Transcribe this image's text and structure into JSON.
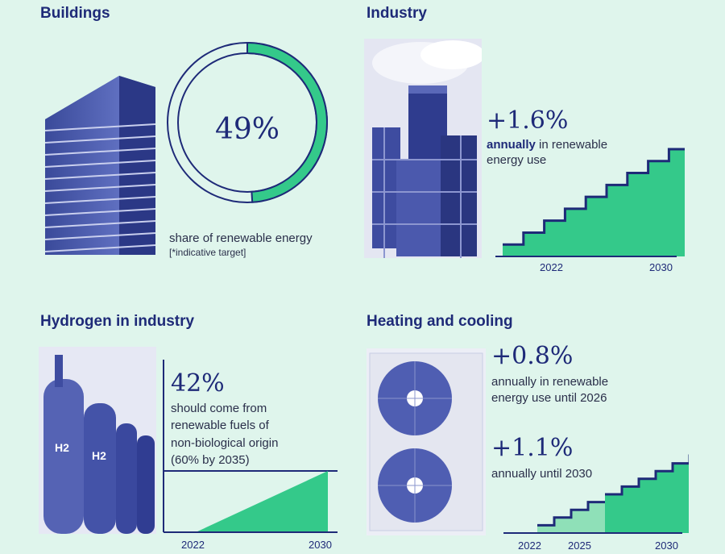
{
  "colors": {
    "background": "#dff5ec",
    "navy": "#1e2a78",
    "green": "#34c98a",
    "light_green": "#8fe0b8",
    "text": "#2a2f4a"
  },
  "buildings": {
    "title": "Buildings",
    "value_label": "49%",
    "share": 49,
    "caption": "share of renewable energy",
    "note": "[*indicative target]",
    "image_icon": "office-building-icon"
  },
  "industry": {
    "title": "Industry",
    "headline": "+1.6%",
    "desc_bold": "annually",
    "desc_rest": " in renewable",
    "desc_line2": "energy use",
    "x_labels": [
      "2022",
      "2030"
    ],
    "chart_data": {
      "type": "area",
      "x": [
        2022,
        2023,
        2024,
        2025,
        2026,
        2027,
        2028,
        2029,
        2030
      ],
      "y": [
        1,
        2,
        3,
        4,
        5,
        6,
        7,
        8,
        9
      ]
    },
    "image_icon": "factory-chimney-icon"
  },
  "hydrogen": {
    "title": "Hydrogen in industry",
    "headline": "42%",
    "lines": [
      "should come from",
      "renewable fuels of",
      "non-biological origin",
      "(60% by 2035)"
    ],
    "x_labels": [
      "2022",
      "2030"
    ],
    "chart_data": {
      "type": "area",
      "x": [
        2022,
        2030
      ],
      "y": [
        0,
        42
      ]
    },
    "tank_label": "H2",
    "image_icon": "hydrogen-tanks-icon"
  },
  "heating": {
    "title": "Heating and cooling",
    "headline1": "+0.8%",
    "desc1_line1": "annually in renewable",
    "desc1_line2": "energy use until 2026",
    "headline2": "+1.1%",
    "desc2": "annually until 2030",
    "x_labels": [
      "2022",
      "2025",
      "2030"
    ],
    "chart_data": {
      "type": "area",
      "series": [
        {
          "x": [
            2022,
            2023,
            2024,
            2025
          ],
          "y": [
            1,
            2,
            3,
            4
          ]
        },
        {
          "x": [
            2025,
            2026,
            2027,
            2028,
            2029,
            2030
          ],
          "y": [
            5,
            6,
            7,
            8,
            9,
            10
          ]
        }
      ]
    },
    "image_icon": "air-conditioner-unit-icon"
  }
}
